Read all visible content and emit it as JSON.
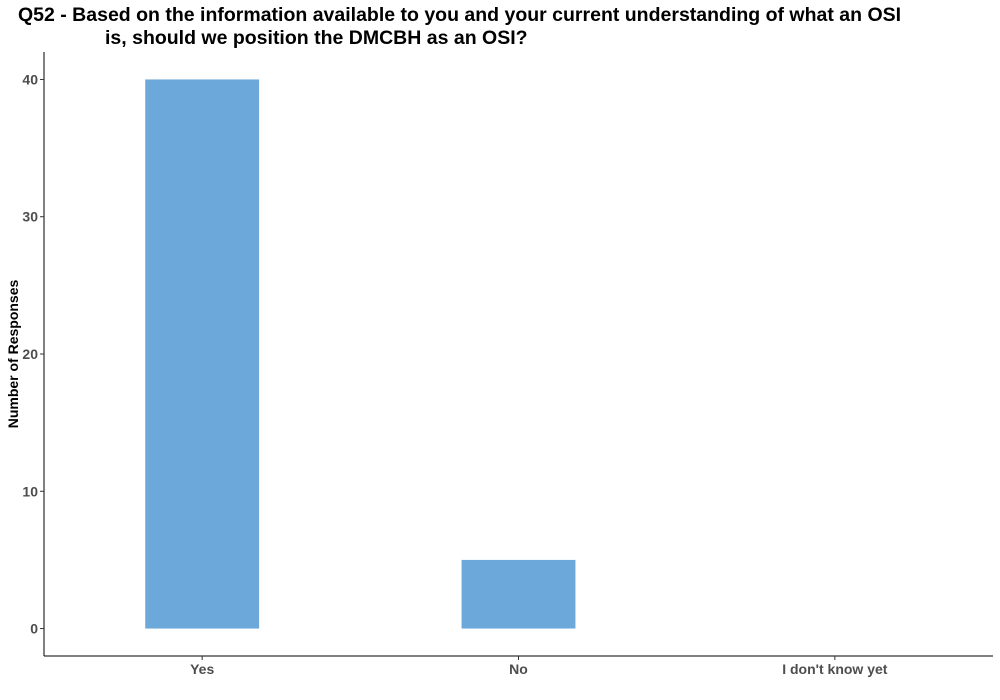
{
  "chart_data": {
    "type": "bar",
    "title_line1": "Q52 - Based on the information available to you and your current understanding of what an OSI",
    "title_line2": "is, should we position the DMCBH as an OSI?",
    "xlabel": "",
    "ylabel": "Number of Responses",
    "categories": [
      "Yes",
      "No",
      "I don't know yet"
    ],
    "values": [
      40,
      5,
      0
    ],
    "ylim": [
      -2,
      42
    ],
    "yticks": [
      0,
      10,
      20,
      30,
      40
    ],
    "bar_color": "#6ca8da",
    "grid": false,
    "legend": "none"
  }
}
